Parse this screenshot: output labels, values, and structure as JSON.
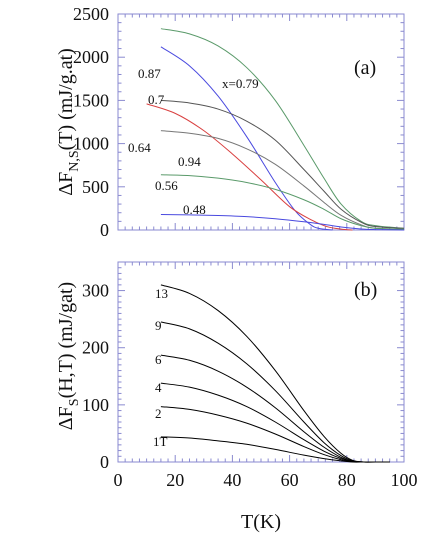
{
  "chart_data": [
    {
      "type": "line",
      "panel_label": "(a)",
      "ylabel": "ΔF",
      "ylabel_sub": "N,S",
      "ylabel_tail": "(T)  (mJ/g.at)",
      "xlim": [
        0,
        100
      ],
      "ylim": [
        0,
        2500
      ],
      "y_ticks": [
        0,
        500,
        1000,
        1500,
        2000,
        2500
      ],
      "y_tick_labels": [
        "0",
        "500",
        "1000",
        "1500",
        "2000",
        "2500"
      ],
      "series": [
        {
          "name": "x=0.79",
          "color": "#5a9a6a",
          "x": [
            15,
            25,
            35,
            45,
            55,
            65,
            72,
            78,
            85,
            90,
            100
          ],
          "y": [
            2330,
            2270,
            2130,
            1880,
            1500,
            980,
            600,
            300,
            100,
            50,
            20
          ]
        },
        {
          "name": "0.87",
          "color": "#4a4adf",
          "x": [
            15,
            25,
            35,
            45,
            55,
            62,
            67,
            70,
            75
          ],
          "y": [
            2120,
            1900,
            1550,
            1080,
            550,
            220,
            70,
            20,
            0
          ]
        },
        {
          "name": "0.7",
          "color": "#555555",
          "x": [
            15,
            25,
            35,
            45,
            55,
            65,
            72,
            78,
            85,
            90,
            100
          ],
          "y": [
            1500,
            1470,
            1400,
            1260,
            1040,
            700,
            450,
            240,
            90,
            40,
            20
          ]
        },
        {
          "name": "0.64",
          "color": "#d94040",
          "x": [
            10,
            20,
            30,
            40,
            50,
            60,
            68,
            73,
            78,
            82
          ],
          "y": [
            1460,
            1350,
            1150,
            880,
            580,
            270,
            110,
            40,
            10,
            0
          ]
        },
        {
          "name": "0.94",
          "color": "#777777",
          "x": [
            15,
            25,
            35,
            45,
            55,
            65,
            72,
            78,
            85,
            90,
            100
          ],
          "y": [
            1150,
            1120,
            1060,
            940,
            760,
            510,
            320,
            170,
            60,
            20,
            10
          ]
        },
        {
          "name": "0.56",
          "color": "#5a9a6a",
          "x": [
            15,
            25,
            35,
            45,
            55,
            65,
            72,
            78,
            85,
            90,
            100
          ],
          "y": [
            640,
            630,
            600,
            550,
            470,
            350,
            240,
            130,
            50,
            20,
            10
          ]
        },
        {
          "name": "0.48",
          "color": "#4a4adf",
          "x": [
            15,
            25,
            35,
            45,
            55,
            65,
            72,
            78,
            85,
            90,
            100
          ],
          "y": [
            180,
            175,
            168,
            155,
            130,
            95,
            65,
            35,
            12,
            5,
            0
          ]
        }
      ],
      "annotations": [
        "0.87",
        "x=0.79",
        "0.7",
        "0.64",
        "0.94",
        "0.56",
        "0.48"
      ]
    },
    {
      "type": "line",
      "panel_label": "(b)",
      "ylabel": "ΔF",
      "ylabel_sub": "S",
      "ylabel_tail": "(H,T)  (mJ/gat)",
      "xlabel": "T(K)",
      "xlim": [
        0,
        100
      ],
      "ylim": [
        0,
        350
      ],
      "x_ticks": [
        0,
        20,
        40,
        60,
        80,
        100
      ],
      "x_tick_labels": [
        "0",
        "20",
        "40",
        "60",
        "80",
        "100"
      ],
      "y_ticks": [
        0,
        100,
        200,
        300
      ],
      "y_tick_labels": [
        "0",
        "100",
        "200",
        "300"
      ],
      "series": [
        {
          "name": "13",
          "color": "#000000",
          "x": [
            15,
            25,
            35,
            45,
            55,
            65,
            72,
            78,
            82,
            86,
            90,
            95
          ],
          "y": [
            310,
            295,
            265,
            220,
            160,
            90,
            45,
            15,
            3,
            0,
            0,
            0
          ]
        },
        {
          "name": "9",
          "color": "#000000",
          "x": [
            15,
            25,
            35,
            45,
            55,
            65,
            72,
            78,
            82,
            86,
            90,
            95
          ],
          "y": [
            245,
            233,
            208,
            172,
            125,
            70,
            34,
            11,
            2,
            0,
            0,
            0
          ]
        },
        {
          "name": "6",
          "color": "#000000",
          "x": [
            15,
            25,
            35,
            45,
            55,
            65,
            72,
            78,
            82,
            86,
            90,
            95
          ],
          "y": [
            187,
            178,
            159,
            131,
            95,
            53,
            26,
            8,
            1,
            0,
            0,
            0
          ]
        },
        {
          "name": "4",
          "color": "#000000",
          "x": [
            15,
            25,
            35,
            45,
            55,
            65,
            72,
            78,
            82,
            86,
            90,
            95
          ],
          "y": [
            138,
            131,
            117,
            97,
            70,
            39,
            19,
            6,
            1,
            0,
            0,
            0
          ]
        },
        {
          "name": "2",
          "color": "#000000",
          "x": [
            15,
            25,
            35,
            45,
            55,
            65,
            72,
            78,
            82,
            86,
            90,
            95
          ],
          "y": [
            97,
            92,
            82,
            68,
            49,
            27,
            13,
            4,
            1,
            0,
            0,
            0
          ]
        },
        {
          "name": "1T",
          "color": "#000000",
          "x": [
            15,
            25,
            35,
            45,
            55,
            65,
            72,
            78,
            82,
            86,
            90,
            95
          ],
          "y": [
            44,
            42,
            37,
            31,
            22,
            12,
            6,
            2,
            0,
            0,
            0,
            0
          ]
        }
      ],
      "annotations": [
        "13",
        "9",
        "6",
        "4",
        "2",
        "1T"
      ]
    }
  ]
}
